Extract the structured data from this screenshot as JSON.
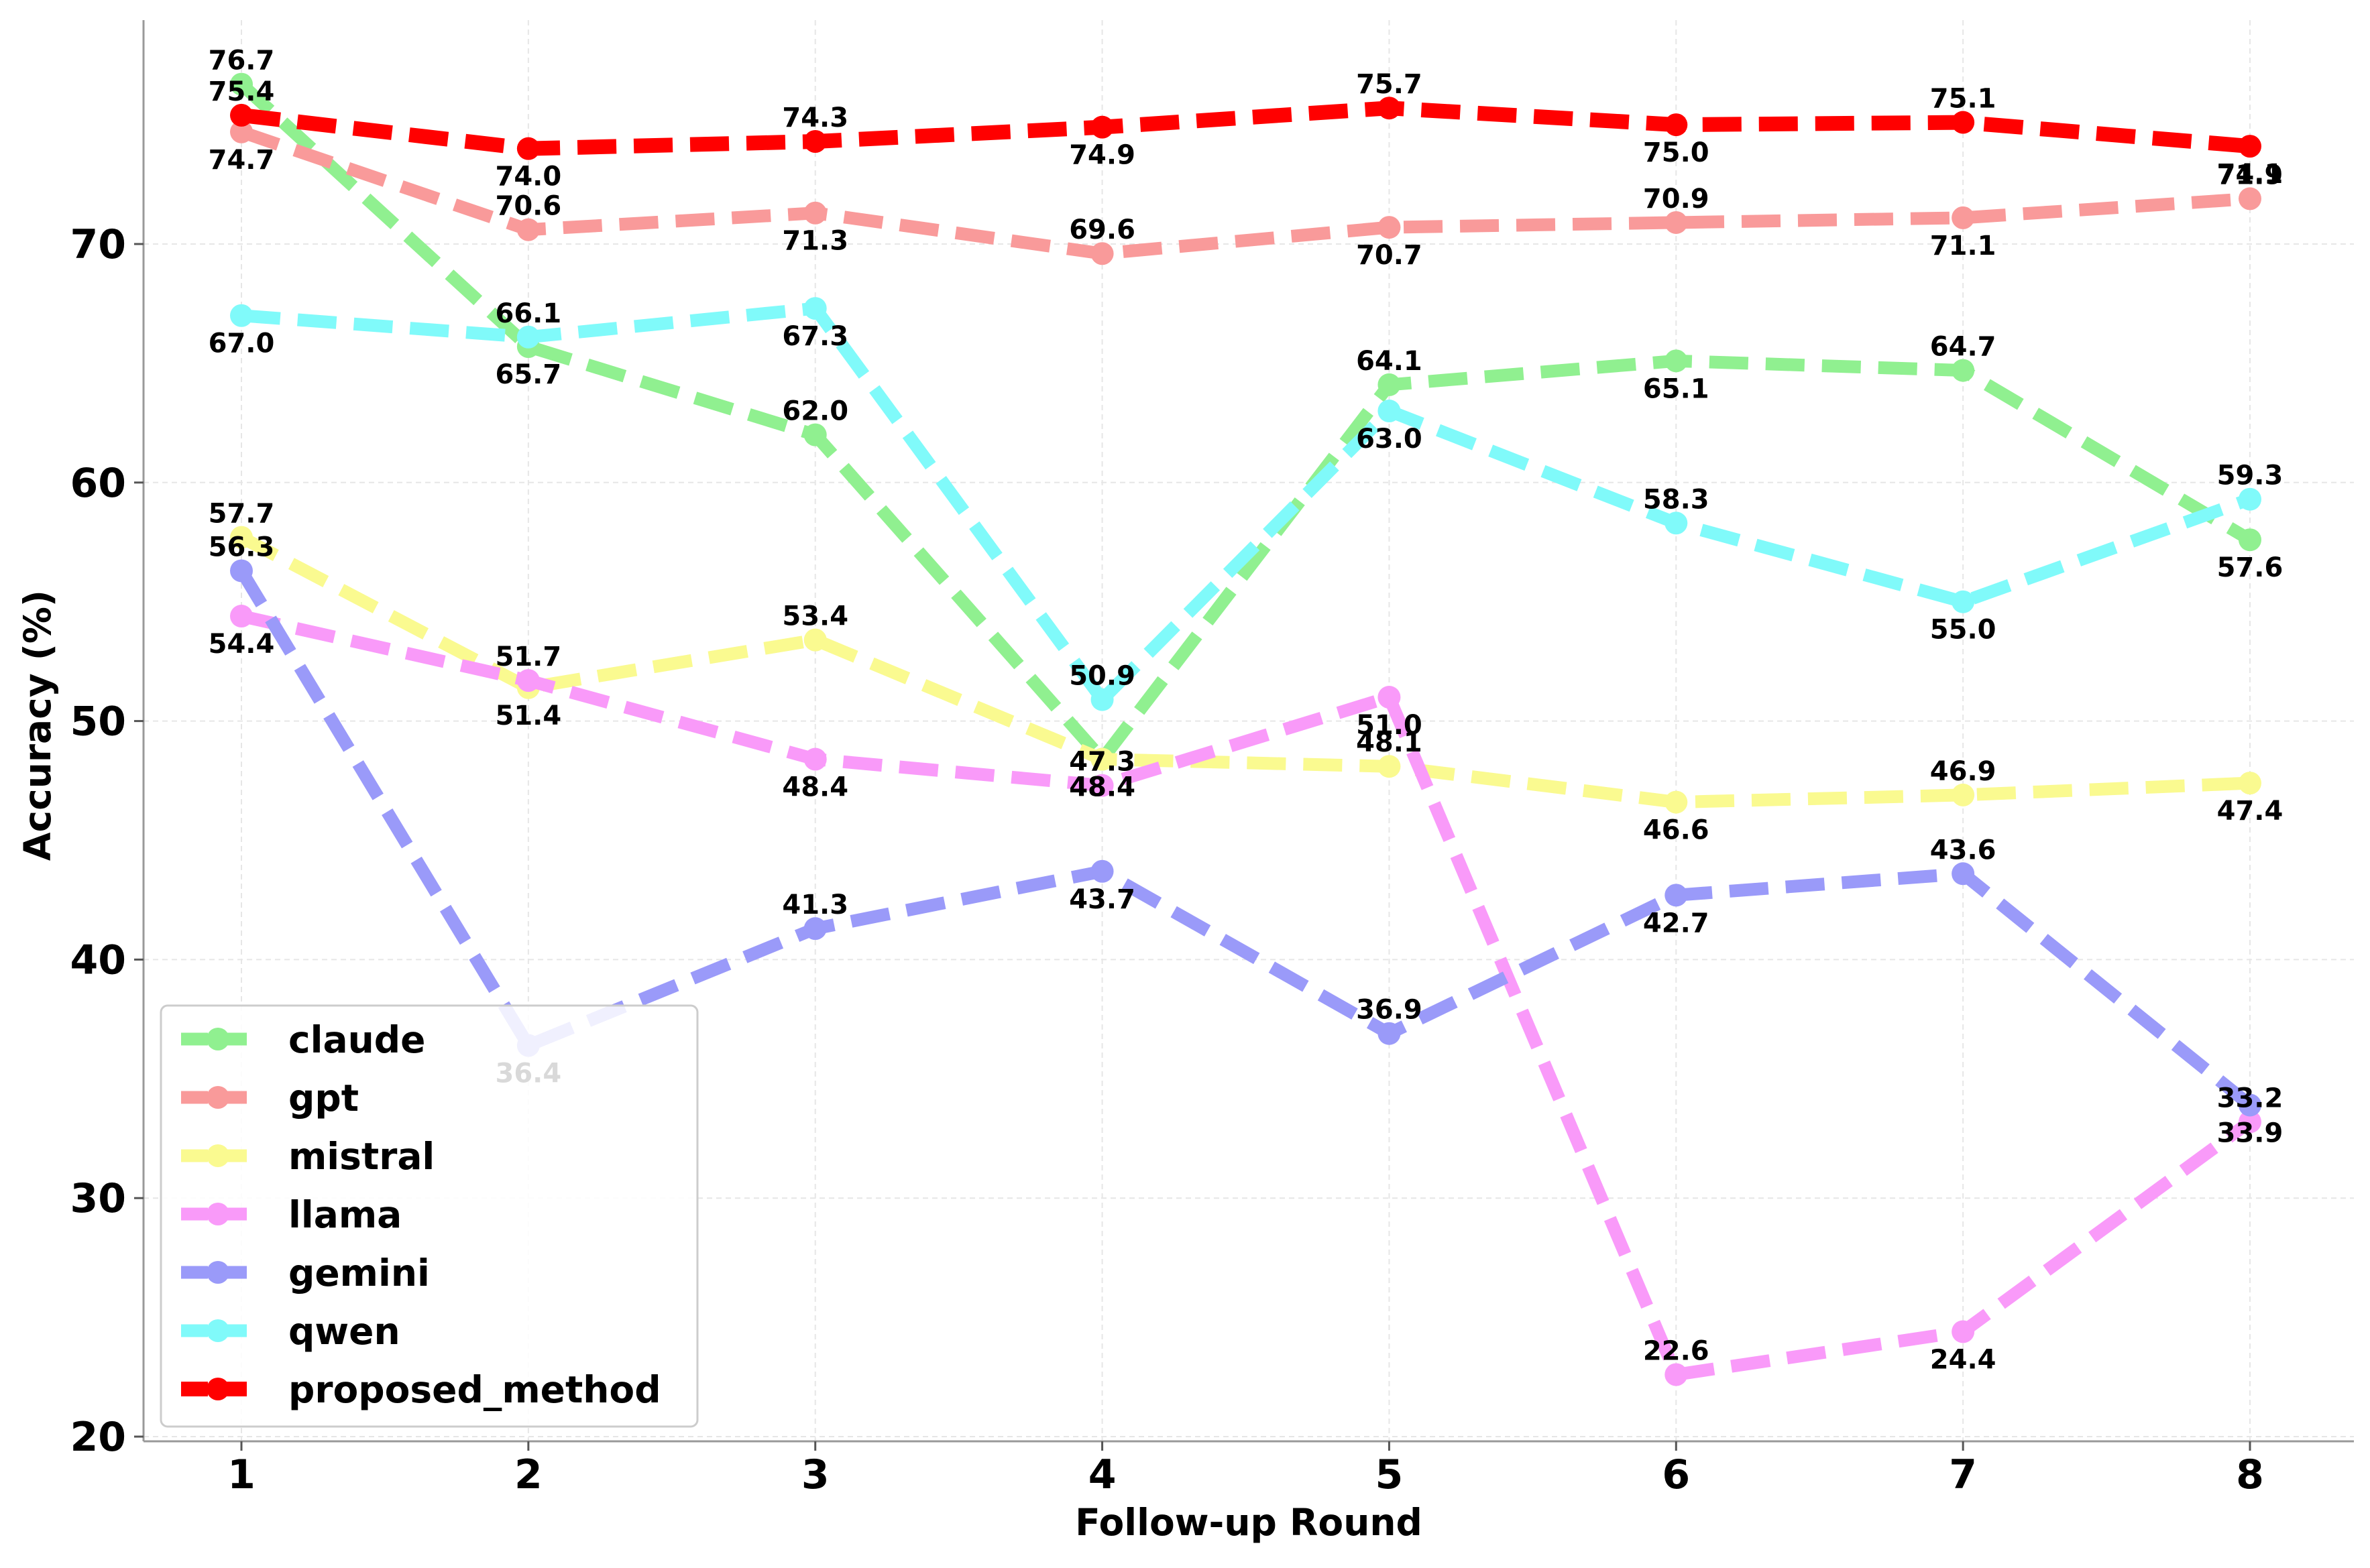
{
  "chart_data": {
    "type": "line",
    "title": "",
    "xlabel": "Follow-up Round",
    "ylabel": "Accuracy (%)",
    "x": [
      1,
      2,
      3,
      4,
      5,
      6,
      7,
      8
    ],
    "x_tick_labels": [
      "1",
      "2",
      "3",
      "4",
      "5",
      "6",
      "7",
      "8"
    ],
    "ylim": [
      20,
      79
    ],
    "y_ticks": [
      20,
      30,
      40,
      50,
      60,
      70
    ],
    "y_tick_labels": [
      "20",
      "30",
      "40",
      "50",
      "60",
      "70"
    ],
    "grid": true,
    "legend_position": "bottom-left",
    "series": [
      {
        "name": "claude",
        "color": "#90f090",
        "values": [
          76.7,
          65.7,
          62.0,
          48.4,
          64.1,
          65.1,
          64.7,
          57.6
        ],
        "labels": [
          "76.7",
          "65.7",
          "62.0",
          "48.4",
          "64.1",
          "65.1",
          "64.7",
          "57.6"
        ]
      },
      {
        "name": "gpt",
        "color": "#f99a9a",
        "values": [
          74.7,
          70.6,
          71.3,
          69.6,
          70.7,
          70.9,
          71.1,
          71.9
        ],
        "labels": [
          "74.7",
          "70.6",
          "71.3",
          "69.6",
          "70.7",
          "70.9",
          "71.1",
          "71.9"
        ]
      },
      {
        "name": "mistral",
        "color": "#fafa90",
        "values": [
          57.7,
          51.4,
          53.4,
          48.4,
          48.1,
          46.6,
          46.9,
          47.4
        ],
        "labels": [
          "57.7",
          "51.4",
          "53.4",
          "48.4",
          "48.1",
          "46.6",
          "46.9",
          "47.4"
        ]
      },
      {
        "name": "llama",
        "color": "#f99af9",
        "values": [
          54.4,
          51.7,
          48.4,
          47.3,
          51.0,
          22.6,
          24.4,
          33.2
        ],
        "labels": [
          "54.4",
          "51.7",
          "48.4",
          "47.3",
          "51.0",
          "22.6",
          "24.4",
          "33.2"
        ]
      },
      {
        "name": "gemini",
        "color": "#9a9af9",
        "values": [
          56.3,
          36.4,
          41.3,
          43.7,
          36.9,
          42.7,
          43.6,
          33.9
        ],
        "labels": [
          "56.3",
          "36.4",
          "41.3",
          "43.7",
          "36.9",
          "42.7",
          "43.6",
          "33.9"
        ]
      },
      {
        "name": "qwen",
        "color": "#80fafa",
        "values": [
          67.0,
          66.1,
          67.3,
          50.9,
          63.0,
          58.3,
          55.0,
          59.3
        ],
        "labels": [
          "67.0",
          "66.1",
          "67.3",
          "50.9",
          "63.0",
          "58.3",
          "55.0",
          "59.3"
        ]
      },
      {
        "name": "proposed_method",
        "color": "#ff0000",
        "values": [
          75.4,
          74.0,
          74.3,
          74.9,
          75.7,
          75.0,
          75.1,
          74.1
        ],
        "labels": [
          "75.4",
          "74.0",
          "74.3",
          "74.9",
          "75.7",
          "75.0",
          "75.1",
          "74.1"
        ]
      }
    ]
  }
}
